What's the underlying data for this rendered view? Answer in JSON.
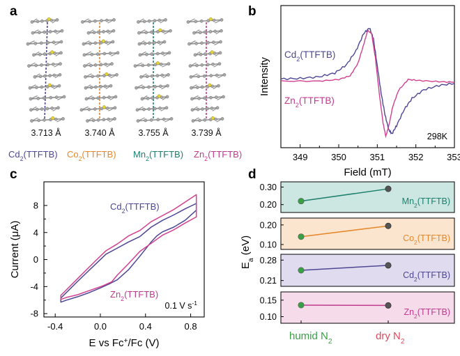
{
  "panel_labels": {
    "a": "a",
    "b": "b",
    "c": "c",
    "d": "d"
  },
  "colors": {
    "cd": "#4d4694",
    "co": "#e5872b",
    "mn": "#1d7f6e",
    "zn": "#c03a8e",
    "zn_line": "#d13f8e",
    "mn_bg": "#cce6e1",
    "co_bg": "#fbe5cf",
    "cd_bg": "#e0dbee",
    "zn_bg": "#f6dcea",
    "humid": "#3aa046",
    "dry": "#e5475e"
  },
  "chart_data": [
    {
      "panel": "a",
      "type": "structure",
      "description_labels": [
        {
          "key": "cd",
          "distance": "3.713 Å",
          "sub": "2",
          "name_pre": "Cd",
          "name_post": "(TTFTB)"
        },
        {
          "key": "co",
          "distance": "3.740 Å",
          "sub": "2",
          "name_pre": "Co",
          "name_post": "(TTFTB)"
        },
        {
          "key": "mn",
          "distance": "3.755 Å",
          "sub": "2",
          "name_pre": "Mn",
          "name_post": "(TTFTB)"
        },
        {
          "key": "zn",
          "distance": "3.739 Å",
          "sub": "2",
          "name_pre": "Zn",
          "name_post": "(TTFTB)"
        }
      ]
    },
    {
      "panel": "b",
      "type": "line",
      "xlabel": "Field (mT)",
      "ylabel": "Intensity",
      "xlim": [
        348.5,
        353
      ],
      "xticks": [
        349,
        350,
        351,
        352,
        353
      ],
      "annotation": "298K",
      "series": [
        {
          "key": "cd",
          "name_pre": "Cd",
          "sub": "2",
          "name_post": "(TTFTB)",
          "x": [
            348.5,
            349.0,
            349.5,
            349.9,
            350.2,
            350.45,
            350.65,
            350.8,
            350.9,
            351.0,
            351.1,
            351.2,
            351.3,
            351.38,
            351.5,
            351.7,
            351.9,
            352.2,
            352.6,
            353.0
          ],
          "y": [
            0.06,
            0.07,
            0.1,
            0.17,
            0.32,
            0.58,
            0.9,
            1.0,
            0.8,
            0.3,
            -0.2,
            -0.6,
            -0.88,
            -0.95,
            -0.8,
            -0.5,
            -0.3,
            -0.14,
            -0.06,
            -0.02
          ]
        },
        {
          "key": "zn",
          "name_pre": "Zn",
          "sub": "2",
          "name_post": "(TTFTB)",
          "x": [
            348.5,
            349.5,
            350.0,
            350.3,
            350.5,
            350.65,
            350.75,
            350.85,
            350.95,
            351.05,
            351.15,
            351.22,
            351.3,
            351.4,
            351.55,
            351.8,
            352.1,
            352.6,
            353.0
          ],
          "y": [
            0.02,
            0.02,
            0.05,
            0.12,
            0.35,
            0.7,
            0.95,
            0.9,
            0.45,
            -0.2,
            -0.75,
            -1.0,
            -0.8,
            -0.45,
            -0.15,
            0.05,
            0.03,
            0.01,
            0.0
          ]
        }
      ]
    },
    {
      "panel": "c",
      "type": "line",
      "xlabel_pre": "E vs Fc",
      "xlabel_sup": "+",
      "xlabel_post": "/Fc (V)",
      "ylabel": "Current (μA)",
      "xlim": [
        -0.5,
        0.92
      ],
      "ylim": [
        -8.5,
        11.5
      ],
      "xticks": [
        -0.4,
        0.0,
        0.4,
        0.8
      ],
      "xtick_labels": [
        "-0.4",
        "0.0",
        "0.4",
        "0.8"
      ],
      "yticks": [
        -8,
        -4,
        0,
        4,
        8
      ],
      "annotation_pre": "0.1 V s",
      "annotation_sup": "-1",
      "series": [
        {
          "key": "cd",
          "name_pre": "Cd",
          "sub": "2",
          "name_post": "(TTFTB)",
          "x": [
            -0.35,
            -0.2,
            -0.05,
            0.05,
            0.15,
            0.25,
            0.35,
            0.45,
            0.55,
            0.65,
            0.75,
            0.85,
            0.85,
            0.75,
            0.65,
            0.55,
            0.5,
            0.45,
            0.35,
            0.25,
            0.15,
            0.08,
            0.0,
            -0.1,
            -0.2,
            -0.3,
            -0.35
          ],
          "y": [
            -5.7,
            -3.2,
            -0.8,
            0.8,
            1.7,
            2.6,
            3.4,
            4.8,
            5.8,
            6.6,
            7.5,
            8.3,
            7.3,
            5.8,
            4.8,
            4.1,
            3.5,
            2.6,
            0.5,
            -1.5,
            -3.0,
            -3.6,
            -4.2,
            -4.9,
            -5.5,
            -6.0,
            -6.3
          ]
        },
        {
          "key": "zn",
          "name_pre": "Zn",
          "sub": "2",
          "name_post": "(TTFTB)",
          "x": [
            -0.35,
            -0.2,
            -0.05,
            0.05,
            0.15,
            0.25,
            0.35,
            0.45,
            0.55,
            0.65,
            0.75,
            0.85,
            0.85,
            0.75,
            0.65,
            0.55,
            0.45,
            0.35,
            0.25,
            0.15,
            0.1,
            0.02,
            -0.1,
            -0.2,
            -0.3,
            -0.35
          ],
          "y": [
            -5.3,
            -2.8,
            -0.3,
            1.3,
            2.3,
            3.5,
            4.3,
            5.6,
            6.5,
            7.4,
            8.5,
            9.6,
            6.3,
            5.4,
            4.4,
            3.6,
            2.4,
            1.2,
            -0.6,
            -2.3,
            -3.3,
            -3.9,
            -4.6,
            -5.2,
            -5.6,
            -5.9
          ]
        }
      ]
    },
    {
      "panel": "d",
      "type": "line",
      "ylabel_pre": "E",
      "ylabel_sub": "a",
      "ylabel_post": " (eV)",
      "categories": [
        {
          "pre": "humid N",
          "sub": "2"
        },
        {
          "pre": "dry N",
          "sub": "2"
        }
      ],
      "subplots": [
        {
          "key": "mn",
          "name_pre": "Mn",
          "sub": "2",
          "name_post": "(TTFTB)",
          "yticks": [
            "0.30",
            "0.20"
          ],
          "ylim": [
            0.155,
            0.33
          ],
          "tick_values": [
            0.3,
            0.2
          ],
          "values": [
            0.22,
            0.29
          ]
        },
        {
          "key": "co",
          "name_pre": "Co",
          "sub": "2",
          "name_post": "(TTFTB)",
          "yticks": [
            "0.20",
            "0.10"
          ],
          "ylim": [
            0.075,
            0.235
          ],
          "tick_values": [
            0.2,
            0.1
          ],
          "values": [
            0.14,
            0.195
          ]
        },
        {
          "key": "cd",
          "name_pre": "Cd",
          "sub": "2",
          "name_post": "(TTFTB)",
          "yticks": [
            "0.28",
            "0.21"
          ],
          "ylim": [
            0.19,
            0.3
          ],
          "tick_values": [
            0.28,
            0.21
          ],
          "values": [
            0.245,
            0.262
          ]
        },
        {
          "key": "zn",
          "name_pre": "Zn",
          "sub": "2",
          "name_post": "(TTFTB)",
          "yticks": [
            "0.15",
            "0.10"
          ],
          "ylim": [
            0.08,
            0.175
          ],
          "tick_values": [
            0.15,
            0.1
          ],
          "values": [
            0.135,
            0.134
          ]
        }
      ]
    }
  ]
}
